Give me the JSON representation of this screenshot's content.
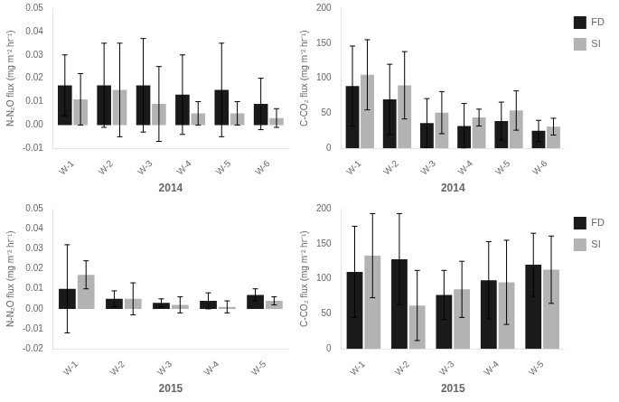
{
  "chart_data": [
    {
      "type": "bar",
      "xlabel": "2014",
      "ylabel": "N-N₂O flux (mg m⁻² hr⁻¹)",
      "categories": [
        "W-1",
        "W-2",
        "W-3",
        "W-4",
        "W-5",
        "W-6"
      ],
      "series": [
        {
          "name": "FD",
          "color": "#1a1a1a",
          "values": [
            0.017,
            0.017,
            0.017,
            0.013,
            0.015,
            0.009
          ],
          "errors": [
            0.013,
            0.018,
            0.02,
            0.017,
            0.02,
            0.011
          ]
        },
        {
          "name": "SI",
          "color": "#b3b3b3",
          "values": [
            0.011,
            0.015,
            0.009,
            0.005,
            0.005,
            0.003
          ],
          "errors": [
            0.011,
            0.02,
            0.016,
            0.005,
            0.005,
            0.004
          ]
        }
      ],
      "ylim": [
        -0.01,
        0.05
      ],
      "yticks": [
        -0.01,
        {
          "value": 0,
          "label": "0.00"
        },
        0.01,
        0.02,
        0.03,
        0.04,
        0.05
      ],
      "grid": false
    },
    {
      "type": "bar",
      "xlabel": "2014",
      "ylabel": "C-CO₂ flux (mg m⁻² hr⁻¹)",
      "categories": [
        "W-1",
        "W-2",
        "W-3",
        "W-4",
        "W-5",
        "W-6"
      ],
      "series": [
        {
          "name": "FD",
          "color": "#1a1a1a",
          "values": [
            89,
            70,
            36,
            32,
            39,
            25
          ],
          "errors": [
            57,
            50,
            35,
            32,
            27,
            15
          ]
        },
        {
          "name": "SI",
          "color": "#b3b3b3",
          "values": [
            105,
            90,
            51,
            44,
            54,
            31
          ],
          "errors": [
            50,
            48,
            30,
            12,
            28,
            12
          ]
        }
      ],
      "ylim": [
        0,
        200
      ],
      "yticks": [
        0,
        50,
        100,
        150,
        200
      ],
      "grid": false,
      "legend": "right"
    },
    {
      "type": "bar",
      "xlabel": "2015",
      "ylabel": "N-N₂O flux (mg m⁻² hr⁻¹)",
      "categories": [
        "W-1",
        "W-2",
        "W-3",
        "W-4",
        "W-5"
      ],
      "series": [
        {
          "name": "FD",
          "color": "#1a1a1a",
          "values": [
            0.01,
            0.005,
            0.003,
            0.004,
            0.007
          ],
          "errors": [
            0.022,
            0.004,
            0.002,
            0.004,
            0.003
          ]
        },
        {
          "name": "SI",
          "color": "#b3b3b3",
          "values": [
            0.017,
            0.005,
            0.002,
            0.001,
            0.004
          ],
          "errors": [
            0.007,
            0.008,
            0.004,
            0.003,
            0.002
          ]
        }
      ],
      "ylim": [
        -0.02,
        0.05
      ],
      "yticks": [
        -0.02,
        -0.01,
        {
          "value": 0,
          "label": "0.00"
        },
        0.01,
        0.02,
        0.03,
        0.04,
        0.05
      ],
      "grid": false
    },
    {
      "type": "bar",
      "xlabel": "2015",
      "ylabel": "C-CO₂ flux (mg m⁻² hr⁻¹)",
      "categories": [
        "W-1",
        "W-2",
        "W-3",
        "W-4",
        "W-5"
      ],
      "series": [
        {
          "name": "FD",
          "color": "#1a1a1a",
          "values": [
            110,
            128,
            77,
            98,
            120
          ],
          "errors": [
            65,
            65,
            35,
            55,
            45
          ]
        },
        {
          "name": "SI",
          "color": "#b3b3b3",
          "values": [
            133,
            62,
            85,
            95,
            113
          ],
          "errors": [
            60,
            50,
            40,
            60,
            48
          ]
        }
      ],
      "ylim": [
        0,
        200
      ],
      "yticks": [
        0,
        50,
        100,
        150,
        200
      ],
      "grid": false,
      "legend": "right"
    }
  ]
}
